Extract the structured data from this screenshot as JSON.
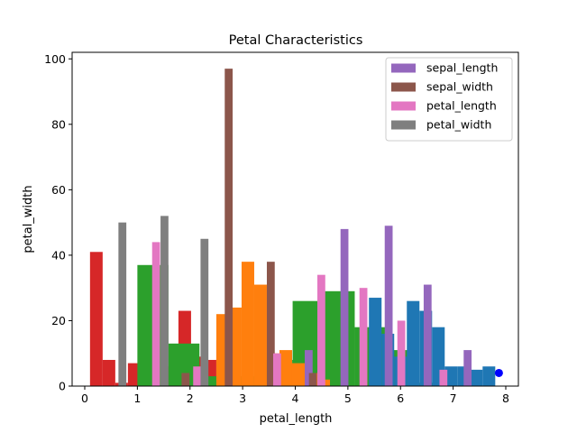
{
  "chart_data": {
    "type": "bar",
    "title": "Petal Characteristics",
    "xlabel": "petal_length",
    "ylabel": "petal_width",
    "xlim": [
      -0.24,
      8.24
    ],
    "ylim": [
      0,
      102
    ],
    "xticks": [
      0,
      1,
      2,
      3,
      4,
      5,
      6,
      7,
      8
    ],
    "yticks": [
      0,
      20,
      40,
      60,
      80,
      100
    ],
    "legend": {
      "position": "top-right",
      "entries": [
        {
          "label": "sepal_length",
          "color": "#9467bd"
        },
        {
          "label": " sepal_width",
          "color": "#8c564b"
        },
        {
          "label": " petal_length",
          "color": "#e377c2"
        },
        {
          "label": " petal_width",
          "color": "#7f7f7f"
        }
      ]
    },
    "series": [
      {
        "name": "red",
        "color": "#d62728",
        "bars": [
          {
            "x": 0.1,
            "w": 0.24,
            "h": 41
          },
          {
            "x": 0.34,
            "w": 0.24,
            "h": 8
          },
          {
            "x": 0.58,
            "w": 0.24,
            "h": 1
          },
          {
            "x": 0.82,
            "w": 0.24,
            "h": 7
          },
          {
            "x": 1.06,
            "w": 0.24,
            "h": 8
          },
          {
            "x": 1.3,
            "w": 0.24,
            "h": 2
          },
          {
            "x": 1.54,
            "w": 0.24,
            "h": 6
          },
          {
            "x": 1.78,
            "w": 0.24,
            "h": 23
          },
          {
            "x": 2.02,
            "w": 0.24,
            "h": 9
          },
          {
            "x": 2.26,
            "w": 0.24,
            "h": 8
          },
          {
            "x": 2.5,
            "w": 0.24,
            "h": 14
          }
        ]
      },
      {
        "name": "green",
        "color": "#2ca02c",
        "bars": [
          {
            "x": 1.0,
            "w": 0.59,
            "h": 37
          },
          {
            "x": 1.59,
            "w": 0.59,
            "h": 13
          },
          {
            "x": 2.18,
            "w": 0.59,
            "h": 3
          },
          {
            "x": 2.77,
            "w": 0.59,
            "h": 3
          },
          {
            "x": 3.36,
            "w": 0.59,
            "h": 8
          },
          {
            "x": 3.95,
            "w": 0.59,
            "h": 26
          },
          {
            "x": 4.54,
            "w": 0.59,
            "h": 29
          },
          {
            "x": 5.13,
            "w": 0.59,
            "h": 18
          },
          {
            "x": 5.72,
            "w": 0.59,
            "h": 11
          },
          {
            "x": 6.31,
            "w": 0.59,
            "h": 1
          }
        ]
      },
      {
        "name": "orange",
        "color": "#ff7f0e",
        "bars": [
          {
            "x": 2.5,
            "w": 0.24,
            "h": 22
          },
          {
            "x": 2.74,
            "w": 0.24,
            "h": 24
          },
          {
            "x": 2.98,
            "w": 0.24,
            "h": 38
          },
          {
            "x": 3.22,
            "w": 0.24,
            "h": 31
          },
          {
            "x": 3.46,
            "w": 0.24,
            "h": 10
          },
          {
            "x": 3.7,
            "w": 0.24,
            "h": 11
          },
          {
            "x": 3.94,
            "w": 0.24,
            "h": 7
          },
          {
            "x": 4.18,
            "w": 0.24,
            "h": 4
          },
          {
            "x": 4.42,
            "w": 0.24,
            "h": 2
          }
        ]
      },
      {
        "name": "blue",
        "color": "#1f77b4",
        "bars": [
          {
            "x": 5.4,
            "w": 0.24,
            "h": 27
          },
          {
            "x": 5.64,
            "w": 0.24,
            "h": 16
          },
          {
            "x": 5.88,
            "w": 0.24,
            "h": 9
          },
          {
            "x": 6.12,
            "w": 0.24,
            "h": 26
          },
          {
            "x": 6.36,
            "w": 0.24,
            "h": 23
          },
          {
            "x": 6.6,
            "w": 0.24,
            "h": 18
          },
          {
            "x": 6.84,
            "w": 0.24,
            "h": 6
          },
          {
            "x": 7.08,
            "w": 0.24,
            "h": 6
          },
          {
            "x": 7.32,
            "w": 0.24,
            "h": 5
          },
          {
            "x": 7.56,
            "w": 0.24,
            "h": 6
          }
        ]
      },
      {
        "name": "sepal_length",
        "color": "#9467bd",
        "bars": [
          {
            "x": 4.18,
            "w": 0.15,
            "h": 11
          },
          {
            "x": 4.86,
            "w": 0.15,
            "h": 48
          },
          {
            "x": 5.7,
            "w": 0.15,
            "h": 49
          },
          {
            "x": 6.44,
            "w": 0.15,
            "h": 31
          },
          {
            "x": 7.2,
            "w": 0.15,
            "h": 11
          }
        ]
      },
      {
        "name": "sepal_width",
        "color": "#8c564b",
        "bars": [
          {
            "x": 1.84,
            "w": 0.15,
            "h": 4
          },
          {
            "x": 2.66,
            "w": 0.15,
            "h": 97
          },
          {
            "x": 3.46,
            "w": 0.15,
            "h": 38
          },
          {
            "x": 4.26,
            "w": 0.15,
            "h": 4
          }
        ]
      },
      {
        "name": "petal_length",
        "color": "#e377c2",
        "bars": [
          {
            "x": 1.28,
            "w": 0.15,
            "h": 44
          },
          {
            "x": 2.06,
            "w": 0.15,
            "h": 6
          },
          {
            "x": 3.58,
            "w": 0.15,
            "h": 10
          },
          {
            "x": 4.42,
            "w": 0.15,
            "h": 34
          },
          {
            "x": 5.22,
            "w": 0.15,
            "h": 30
          },
          {
            "x": 5.94,
            "w": 0.15,
            "h": 20
          },
          {
            "x": 6.74,
            "w": 0.15,
            "h": 5
          }
        ]
      },
      {
        "name": "petal_width",
        "color": "#7f7f7f",
        "bars": [
          {
            "x": 0.64,
            "w": 0.15,
            "h": 50
          },
          {
            "x": 1.44,
            "w": 0.15,
            "h": 52
          },
          {
            "x": 2.2,
            "w": 0.15,
            "h": 45
          }
        ]
      }
    ],
    "points": [
      {
        "x": 7.87,
        "y": 4,
        "color": "#0000ff"
      }
    ]
  }
}
